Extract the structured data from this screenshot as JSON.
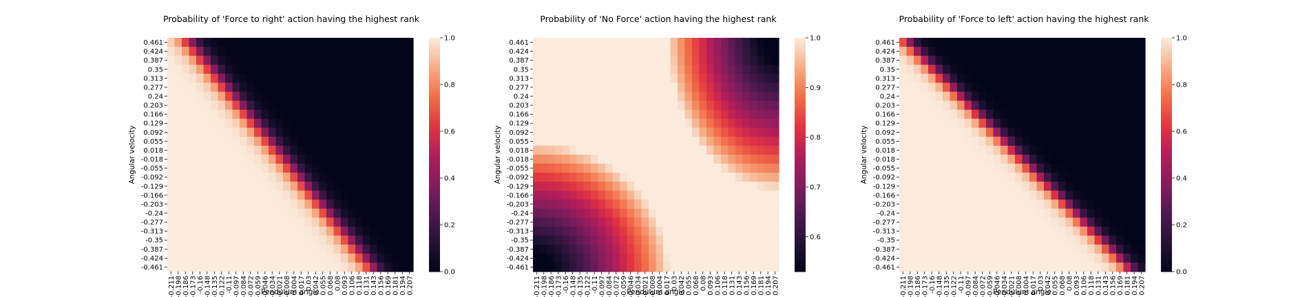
{
  "chart_data": [
    {
      "type": "heatmap",
      "title": "Probability of 'Force to right' action having the highest rank",
      "xlabel": "Pendulum angle",
      "ylabel": "Angular velocity",
      "colormap": "rocket",
      "vmin": 0.0,
      "vmax": 1.0,
      "colorbar_ticks": [
        "0.0",
        "0.2",
        "0.4",
        "0.6",
        "0.8",
        "1.0"
      ],
      "surface": {
        "kind": "right",
        "boundary_angle_at_top": -0.18,
        "boundary_angle_at_bottom": 0.142,
        "transition_width": 0.045
      }
    },
    {
      "type": "heatmap",
      "title": "Probability of 'No Force' action having the highest rank",
      "xlabel": "Pendulum angle",
      "ylabel": "Angular velocity",
      "colormap": "rocket",
      "vmin": 0.53,
      "vmax": 1.0,
      "colorbar_ticks": [
        "0.6",
        "0.7",
        "0.8",
        "0.9",
        "1.0"
      ],
      "surface": {
        "kind": "noforce",
        "low_corners": [
          "bottom-left",
          "top-right"
        ],
        "min_value": 0.53
      }
    },
    {
      "type": "heatmap",
      "title": "Probability of 'Force to left' action having the highest rank",
      "xlabel": "Pendulum angle",
      "ylabel": "Angular velocity",
      "colormap": "rocket",
      "vmin": 0.0,
      "vmax": 1.0,
      "colorbar_ticks": [
        "0.0",
        "0.2",
        "0.4",
        "0.6",
        "0.8",
        "1.0"
      ],
      "surface": {
        "kind": "left",
        "boundary_angle_at_top": -0.205,
        "boundary_angle_at_bottom": 0.185,
        "transition_width": 0.04
      }
    }
  ],
  "axes": {
    "x_ticks": [
      "-0.211",
      "-0.198",
      "-0.186",
      "-0.173",
      "-0.16",
      "-0.148",
      "-0.135",
      "-0.122",
      "-0.11",
      "-0.097",
      "-0.084",
      "-0.072",
      "-0.059",
      "-0.046",
      "-0.034",
      "-0.021",
      "-0.008",
      "0.004",
      "0.017",
      "0.03",
      "0.042",
      "0.055",
      "0.068",
      "0.08",
      "0.093",
      "0.106",
      "0.118",
      "0.131",
      "0.143",
      "0.156",
      "0.169",
      "0.181",
      "0.194",
      "0.207"
    ],
    "y_ticks": [
      "0.461",
      "0.424",
      "0.387",
      "0.35",
      "0.313",
      "0.277",
      "0.24",
      "0.203",
      "0.166",
      "0.129",
      "0.092",
      "0.055",
      "0.018",
      "-0.018",
      "-0.055",
      "-0.092",
      "-0.129",
      "-0.166",
      "-0.203",
      "-0.24",
      "-0.277",
      "-0.313",
      "-0.35",
      "-0.387",
      "-0.424",
      "-0.461"
    ],
    "x_range": [
      -0.211,
      0.207
    ],
    "y_range": [
      -0.461,
      0.461
    ]
  }
}
